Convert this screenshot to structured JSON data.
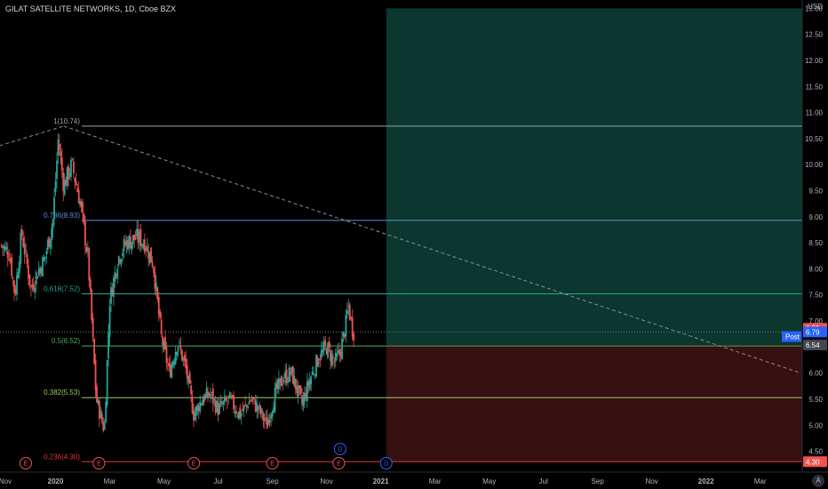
{
  "header": {
    "title": "GILAT SATELLITE NETWORKS, 1D, Cboe BZX"
  },
  "axis": {
    "currency": "USD",
    "auto_label": "A"
  },
  "colors": {
    "bg": "#000000",
    "up": "#26a69a",
    "down": "#ef5350",
    "grid": "#0b0b0b",
    "axis_text": "#b2b5be"
  },
  "chart_data": {
    "type": "candlestick",
    "title": "GILAT SATELLITE NETWORKS, 1D, Cboe BZX",
    "y_unit": "USD",
    "ylim": [
      4.1,
      13.0
    ],
    "y_ticks": [
      4.5,
      5.0,
      5.5,
      6.0,
      6.5,
      7.0,
      7.5,
      8.0,
      8.5,
      9.0,
      9.5,
      10.0,
      10.5,
      11.0,
      11.5,
      12.0,
      12.5,
      13.0
    ],
    "y_tick_labels": [
      "4.50",
      "5.00",
      "5.50",
      "6.00",
      "6.50",
      "7.00",
      "7.50",
      "8.00",
      "8.50",
      "9.00",
      "9.50",
      "10.00",
      "10.50",
      "11.00",
      "11.50",
      "12.00",
      "12.50",
      "13.00"
    ],
    "x_tick_labels": [
      "Nov",
      "2020",
      "Mar",
      "May",
      "Jul",
      "Sep",
      "Nov",
      "2021",
      "Mar",
      "May",
      "Jul",
      "Sep",
      "Nov",
      "2022",
      "Mar"
    ],
    "x_tick_months": [
      0,
      2,
      4,
      6,
      8,
      10,
      12,
      14,
      16,
      18,
      20,
      22,
      24,
      26,
      28
    ],
    "bold_x_ticks": [
      "2020",
      "2021",
      "2022"
    ],
    "price_path": [
      [
        0,
        8.45
      ],
      [
        0.3,
        8.3
      ],
      [
        0.5,
        7.5
      ],
      [
        0.75,
        8.7
      ],
      [
        1.1,
        7.6
      ],
      [
        1.3,
        7.9
      ],
      [
        1.6,
        8.2
      ],
      [
        1.9,
        8.9
      ],
      [
        2.1,
        10.5
      ],
      [
        2.3,
        9.6
      ],
      [
        2.6,
        10.0
      ],
      [
        2.9,
        9.3
      ],
      [
        3.2,
        8.2
      ],
      [
        3.5,
        5.5
      ],
      [
        3.8,
        4.9
      ],
      [
        4.0,
        7.4
      ],
      [
        4.3,
        8.2
      ],
      [
        4.6,
        8.5
      ],
      [
        5.0,
        8.6
      ],
      [
        5.3,
        8.5
      ],
      [
        5.6,
        8.1
      ],
      [
        5.9,
        6.7
      ],
      [
        6.2,
        6.0
      ],
      [
        6.5,
        6.6
      ],
      [
        6.8,
        6.1
      ],
      [
        7.1,
        5.2
      ],
      [
        7.4,
        5.5
      ],
      [
        7.7,
        5.6
      ],
      [
        8.0,
        5.3
      ],
      [
        8.4,
        5.5
      ],
      [
        8.8,
        5.2
      ],
      [
        9.2,
        5.5
      ],
      [
        9.5,
        5.3
      ],
      [
        9.8,
        5.0
      ],
      [
        10.1,
        5.6
      ],
      [
        10.4,
        5.9
      ],
      [
        10.7,
        6.0
      ],
      [
        11.1,
        5.4
      ],
      [
        11.4,
        5.9
      ],
      [
        11.7,
        6.3
      ],
      [
        12.0,
        6.5
      ],
      [
        12.3,
        6.2
      ],
      [
        12.5,
        6.4
      ],
      [
        12.7,
        6.9
      ],
      [
        12.8,
        7.3
      ],
      [
        12.95,
        6.85
      ],
      [
        13.0,
        6.79
      ]
    ],
    "last_price": 6.79,
    "last_price_label": "6.79",
    "last_close_label": "6.81",
    "post_label": "Post",
    "fibonacci": {
      "high": 10.74,
      "low": 4.3,
      "levels": [
        {
          "ratio": 1,
          "price": 10.74,
          "label": "1(10.74)",
          "color": "#9aa6b2"
        },
        {
          "ratio": 0.786,
          "price": 8.93,
          "label": "0.786(8.93)",
          "color": "#5a8fdd"
        },
        {
          "ratio": 0.618,
          "price": 7.52,
          "label": "0.618(7.52)",
          "color": "#26a69a"
        },
        {
          "ratio": 0.5,
          "price": 6.52,
          "label": "0.5(6.52)",
          "color": "#4caf50"
        },
        {
          "ratio": 0.382,
          "price": 5.53,
          "label": "0.382(5.53)",
          "color": "#9ccc65"
        },
        {
          "ratio": 0.236,
          "price": 4.3,
          "label": "0.236(4.30)",
          "color": "#e53935"
        }
      ]
    },
    "position": {
      "entry": 6.54,
      "entry_label": "6.54",
      "target": 13.0,
      "stop": 4.3,
      "stop_label": "4.30",
      "start_month": 14.2
    },
    "trendline": {
      "start": [
        -1.6,
        10.12
      ],
      "peak": [
        2.3,
        10.74
      ],
      "end": [
        29.5,
        6.0
      ]
    },
    "events": [
      {
        "month": 0.9,
        "type": "E"
      },
      {
        "month": 3.6,
        "type": "E"
      },
      {
        "month": 7.1,
        "type": "E"
      },
      {
        "month": 10.0,
        "type": "E"
      },
      {
        "month": 12.45,
        "type": "E"
      },
      {
        "month": 12.5,
        "type": "D"
      },
      {
        "month": 14.2,
        "type": "D"
      }
    ]
  }
}
